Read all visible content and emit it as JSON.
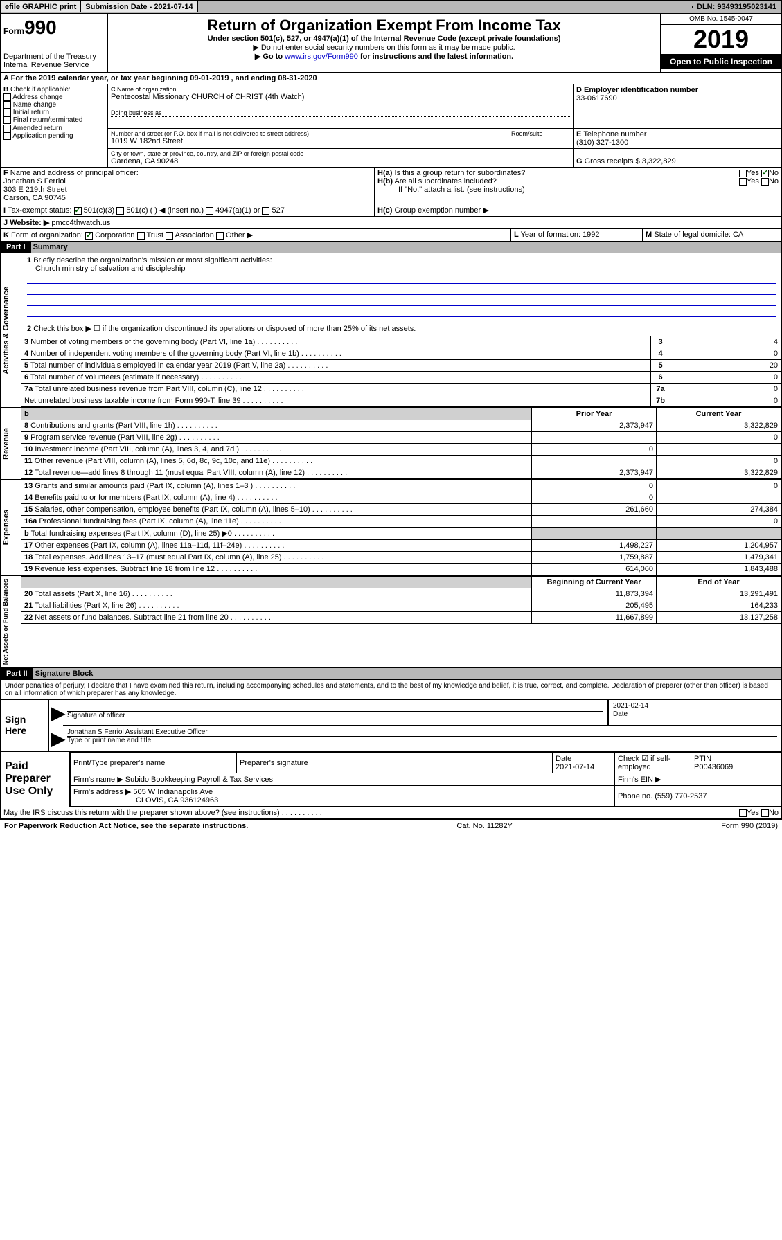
{
  "topbar": {
    "efile": "efile GRAPHIC print",
    "sub_label": "Submission Date - 2021-07-14",
    "dln": "DLN: 93493195023141"
  },
  "header": {
    "form_prefix": "Form",
    "form_num": "990",
    "dept": "Department of the Treasury",
    "irs": "Internal Revenue Service",
    "title": "Return of Organization Exempt From Income Tax",
    "sub1": "Under section 501(c), 527, or 4947(a)(1) of the Internal Revenue Code (except private foundations)",
    "sub2": "▶ Do not enter social security numbers on this form as it may be made public.",
    "sub3_a": "▶ Go to ",
    "sub3_link": "www.irs.gov/Form990",
    "sub3_b": " for instructions and the latest information.",
    "omb": "OMB No. 1545-0047",
    "year": "2019",
    "open": "Open to Public Inspection"
  },
  "A": {
    "text": "For the 2019 calendar year, or tax year beginning 09-01-2019  , and ending 08-31-2020"
  },
  "B": {
    "label": "Check if applicable:",
    "opts": [
      "Address change",
      "Name change",
      "Initial return",
      "Final return/terminated",
      "Amended return",
      "Application pending"
    ]
  },
  "C": {
    "name_label": "Name of organization",
    "name": "Pentecostal Missionary CHURCH of CHRIST (4th Watch)",
    "dba_label": "Doing business as",
    "addr_label": "Number and street (or P.O. box if mail is not delivered to street address)",
    "addr": "1019 W 182nd Street",
    "room_label": "Room/suite",
    "city_label": "City or town, state or province, country, and ZIP or foreign postal code",
    "city": "Gardena, CA  90248"
  },
  "D": {
    "label": "Employer identification number",
    "value": "33-0617690"
  },
  "E": {
    "label": "Telephone number",
    "value": "(310) 327-1300"
  },
  "G": {
    "label": "Gross receipts $",
    "value": "3,322,829"
  },
  "F": {
    "label": "Name and address of principal officer:",
    "name": "Jonathan S Ferriol",
    "addr1": "303 E 219th Street",
    "addr2": "Carson, CA  90745"
  },
  "H": {
    "a": "Is this a group return for subordinates?",
    "b": "Are all subordinates included?",
    "b_note": "If \"No,\" attach a list. (see instructions)",
    "c": "Group exemption number ▶",
    "yes": "Yes",
    "no": "No"
  },
  "I": {
    "label": "Tax-exempt status:",
    "o1": "501(c)(3)",
    "o2": "501(c) (  ) ◀ (insert no.)",
    "o3": "4947(a)(1) or",
    "o4": "527"
  },
  "J": {
    "label": "Website: ▶",
    "value": "pmcc4thwatch.us"
  },
  "K": {
    "label": "Form of organization:",
    "o1": "Corporation",
    "o2": "Trust",
    "o3": "Association",
    "o4": "Other ▶"
  },
  "L": {
    "label": "Year of formation:",
    "value": "1992"
  },
  "M": {
    "label": "State of legal domicile:",
    "value": "CA"
  },
  "part1": {
    "title": "Part I",
    "name": "Summary",
    "q1": "Briefly describe the organization's mission or most significant activities:",
    "q1_ans": "Church ministry of salvation and discipleship",
    "q2": "Check this box ▶ ☐ if the organization discontinued its operations or disposed of more than 25% of its net assets.",
    "lines_ag": [
      {
        "n": "3",
        "t": "Number of voting members of the governing body (Part VI, line 1a)",
        "k": "3",
        "v": "4"
      },
      {
        "n": "4",
        "t": "Number of independent voting members of the governing body (Part VI, line 1b)",
        "k": "4",
        "v": "0"
      },
      {
        "n": "5",
        "t": "Total number of individuals employed in calendar year 2019 (Part V, line 2a)",
        "k": "5",
        "v": "20"
      },
      {
        "n": "6",
        "t": "Total number of volunteers (estimate if necessary)",
        "k": "6",
        "v": "0"
      },
      {
        "n": "7a",
        "t": "Total unrelated business revenue from Part VIII, column (C), line 12",
        "k": "7a",
        "v": "0"
      },
      {
        "n": "",
        "t": "Net unrelated business taxable income from Form 990-T, line 39",
        "k": "7b",
        "v": "0"
      }
    ],
    "col_prior": "Prior Year",
    "col_current": "Current Year",
    "col_begin": "Beginning of Current Year",
    "col_end": "End of Year",
    "rev": [
      {
        "n": "8",
        "t": "Contributions and grants (Part VIII, line 1h)",
        "p": "2,373,947",
        "c": "3,322,829"
      },
      {
        "n": "9",
        "t": "Program service revenue (Part VIII, line 2g)",
        "p": "",
        "c": "0"
      },
      {
        "n": "10",
        "t": "Investment income (Part VIII, column (A), lines 3, 4, and 7d )",
        "p": "0",
        "c": ""
      },
      {
        "n": "11",
        "t": "Other revenue (Part VIII, column (A), lines 5, 6d, 8c, 9c, 10c, and 11e)",
        "p": "",
        "c": "0"
      },
      {
        "n": "12",
        "t": "Total revenue—add lines 8 through 11 (must equal Part VIII, column (A), line 12)",
        "p": "2,373,947",
        "c": "3,322,829"
      }
    ],
    "exp": [
      {
        "n": "13",
        "t": "Grants and similar amounts paid (Part IX, column (A), lines 1–3 )",
        "p": "0",
        "c": "0"
      },
      {
        "n": "14",
        "t": "Benefits paid to or for members (Part IX, column (A), line 4)",
        "p": "0",
        "c": ""
      },
      {
        "n": "15",
        "t": "Salaries, other compensation, employee benefits (Part IX, column (A), lines 5–10)",
        "p": "261,660",
        "c": "274,384"
      },
      {
        "n": "16a",
        "t": "Professional fundraising fees (Part IX, column (A), line 11e)",
        "p": "",
        "c": "0"
      },
      {
        "n": "b",
        "t": "Total fundraising expenses (Part IX, column (D), line 25) ▶0",
        "p": "shade",
        "c": "shade"
      },
      {
        "n": "17",
        "t": "Other expenses (Part IX, column (A), lines 11a–11d, 11f–24e)",
        "p": "1,498,227",
        "c": "1,204,957"
      },
      {
        "n": "18",
        "t": "Total expenses. Add lines 13–17 (must equal Part IX, column (A), line 25)",
        "p": "1,759,887",
        "c": "1,479,341"
      },
      {
        "n": "19",
        "t": "Revenue less expenses. Subtract line 18 from line 12",
        "p": "614,060",
        "c": "1,843,488"
      }
    ],
    "net": [
      {
        "n": "20",
        "t": "Total assets (Part X, line 16)",
        "p": "11,873,394",
        "c": "13,291,491"
      },
      {
        "n": "21",
        "t": "Total liabilities (Part X, line 26)",
        "p": "205,495",
        "c": "164,233"
      },
      {
        "n": "22",
        "t": "Net assets or fund balances. Subtract line 21 from line 20",
        "p": "11,667,899",
        "c": "13,127,258"
      }
    ],
    "side_ag": "Activities & Governance",
    "side_rev": "Revenue",
    "side_exp": "Expenses",
    "side_net": "Net Assets or Fund Balances"
  },
  "part2": {
    "title": "Part II",
    "name": "Signature Block",
    "decl": "Under penalties of perjury, I declare that I have examined this return, including accompanying schedules and statements, and to the best of my knowledge and belief, it is true, correct, and complete. Declaration of preparer (other than officer) is based on all information of which preparer has any knowledge.",
    "sign_here": "Sign Here",
    "sig_officer": "Signature of officer",
    "sig_date": "2021-02-14",
    "date_label": "Date",
    "officer_name": "Jonathan S Ferriol Assistant Executive Officer",
    "type_label": "Type or print name and title",
    "paid": "Paid Preparer Use Only",
    "pt_name_label": "Print/Type preparer's name",
    "pt_sig_label": "Preparer's signature",
    "pt_date": "2021-07-14",
    "self_emp": "Check ☑ if self-employed",
    "ptin_label": "PTIN",
    "ptin": "P00436069",
    "firm_name_label": "Firm's name    ▶",
    "firm_name": "Subido Bookkeeping Payroll & Tax Services",
    "firm_ein_label": "Firm's EIN ▶",
    "firm_addr_label": "Firm's address ▶",
    "firm_addr": "505 W Indianapolis Ave",
    "firm_city": "CLOVIS, CA  936124963",
    "firm_phone_label": "Phone no.",
    "firm_phone": "(559) 770-2537",
    "discuss": "May the IRS discuss this return with the preparer shown above? (see instructions)"
  },
  "footer": {
    "left": "For Paperwork Reduction Act Notice, see the separate instructions.",
    "mid": "Cat. No. 11282Y",
    "right": "Form 990 (2019)"
  }
}
